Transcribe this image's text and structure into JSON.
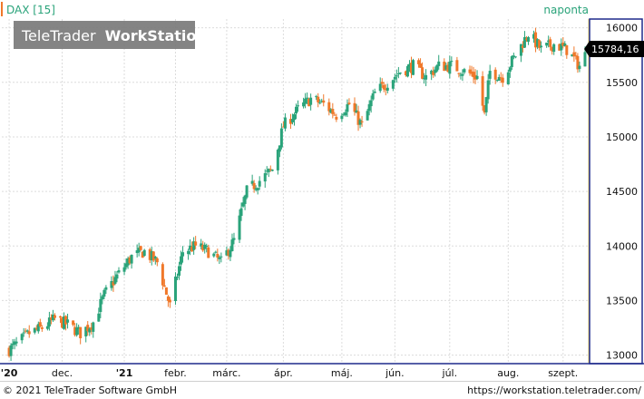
{
  "header": {
    "instrument_label": "DAX [15]",
    "period_label": "naponta",
    "logo_text_light": "TeleTrader",
    "logo_text_bold": "WorkStation"
  },
  "price_flag": "15784,16",
  "colors": {
    "up": "#2aa37a",
    "down": "#f0782a",
    "grid": "#dcdcdc",
    "header_text": "#2aa37a",
    "price_flag_bg": "#000000",
    "price_flag_text": "#ffffff",
    "logo_bg": "#777777",
    "axis_border": "#1e2a8c"
  },
  "chart_data": {
    "type": "candlestick",
    "title": "DAX [15]",
    "period": "naponta",
    "xlabel": "",
    "ylabel": "",
    "ylim": [
      12930,
      16080
    ],
    "y_ticks": [
      13000,
      13500,
      14000,
      14500,
      15000,
      15500,
      16000
    ],
    "x_ticks": [
      {
        "label": "'20",
        "date": "2020-11-02"
      },
      {
        "label": "dec.",
        "date": "2020-12-01"
      },
      {
        "label": "'21",
        "date": "2021-01-04"
      },
      {
        "label": "febr.",
        "date": "2021-02-01"
      },
      {
        "label": "márc.",
        "date": "2021-03-01"
      },
      {
        "label": "ápr.",
        "date": "2021-04-01"
      },
      {
        "label": "máj.",
        "date": "2021-05-03"
      },
      {
        "label": "jún.",
        "date": "2021-06-01"
      },
      {
        "label": "júl.",
        "date": "2021-07-01"
      },
      {
        "label": "aug.",
        "date": "2021-08-02"
      },
      {
        "label": "szept.",
        "date": "2021-09-01"
      }
    ],
    "last_value": 15784.16,
    "grid": true,
    "close_path": [
      [
        "2020-11-02",
        13050
      ],
      [
        "2020-11-06",
        13100
      ],
      [
        "2020-11-13",
        13200
      ],
      [
        "2020-11-20",
        13250
      ],
      [
        "2020-11-27",
        13330
      ],
      [
        "2020-12-04",
        13280
      ],
      [
        "2020-12-11",
        13200
      ],
      [
        "2020-12-18",
        13300
      ],
      [
        "2020-12-24",
        13550
      ],
      [
        "2020-12-30",
        13700
      ],
      [
        "2021-01-08",
        13900
      ],
      [
        "2021-01-15",
        13950
      ],
      [
        "2021-01-22",
        13850
      ],
      [
        "2021-01-29",
        13450
      ],
      [
        "2021-02-05",
        13950
      ],
      [
        "2021-02-12",
        14000
      ],
      [
        "2021-02-19",
        13950
      ],
      [
        "2021-02-26",
        13850
      ],
      [
        "2021-03-05",
        14050
      ],
      [
        "2021-03-12",
        14500
      ],
      [
        "2021-03-19",
        14600
      ],
      [
        "2021-03-26",
        14700
      ],
      [
        "2021-04-01",
        15100
      ],
      [
        "2021-04-09",
        15250
      ],
      [
        "2021-04-16",
        15350
      ],
      [
        "2021-04-23",
        15300
      ],
      [
        "2021-04-30",
        15200
      ],
      [
        "2021-05-07",
        15300
      ],
      [
        "2021-05-14",
        15100
      ],
      [
        "2021-05-21",
        15400
      ],
      [
        "2021-05-28",
        15500
      ],
      [
        "2021-06-04",
        15600
      ],
      [
        "2021-06-11",
        15650
      ],
      [
        "2021-06-18",
        15550
      ],
      [
        "2021-06-25",
        15650
      ],
      [
        "2021-07-02",
        15650
      ],
      [
        "2021-07-09",
        15600
      ],
      [
        "2021-07-16",
        15550
      ],
      [
        "2021-07-20",
        15200
      ],
      [
        "2021-07-23",
        15600
      ],
      [
        "2021-07-30",
        15550
      ],
      [
        "2021-08-06",
        15750
      ],
      [
        "2021-08-13",
        15950
      ],
      [
        "2021-08-20",
        15800
      ],
      [
        "2021-08-27",
        15850
      ],
      [
        "2021-09-03",
        15800
      ],
      [
        "2021-09-10",
        15650
      ],
      [
        "2021-09-13",
        15750
      ]
    ]
  },
  "footer": {
    "copyright": "© 2021 TeleTrader Software GmbH",
    "url": "https://workstation.teletrader.com/"
  }
}
